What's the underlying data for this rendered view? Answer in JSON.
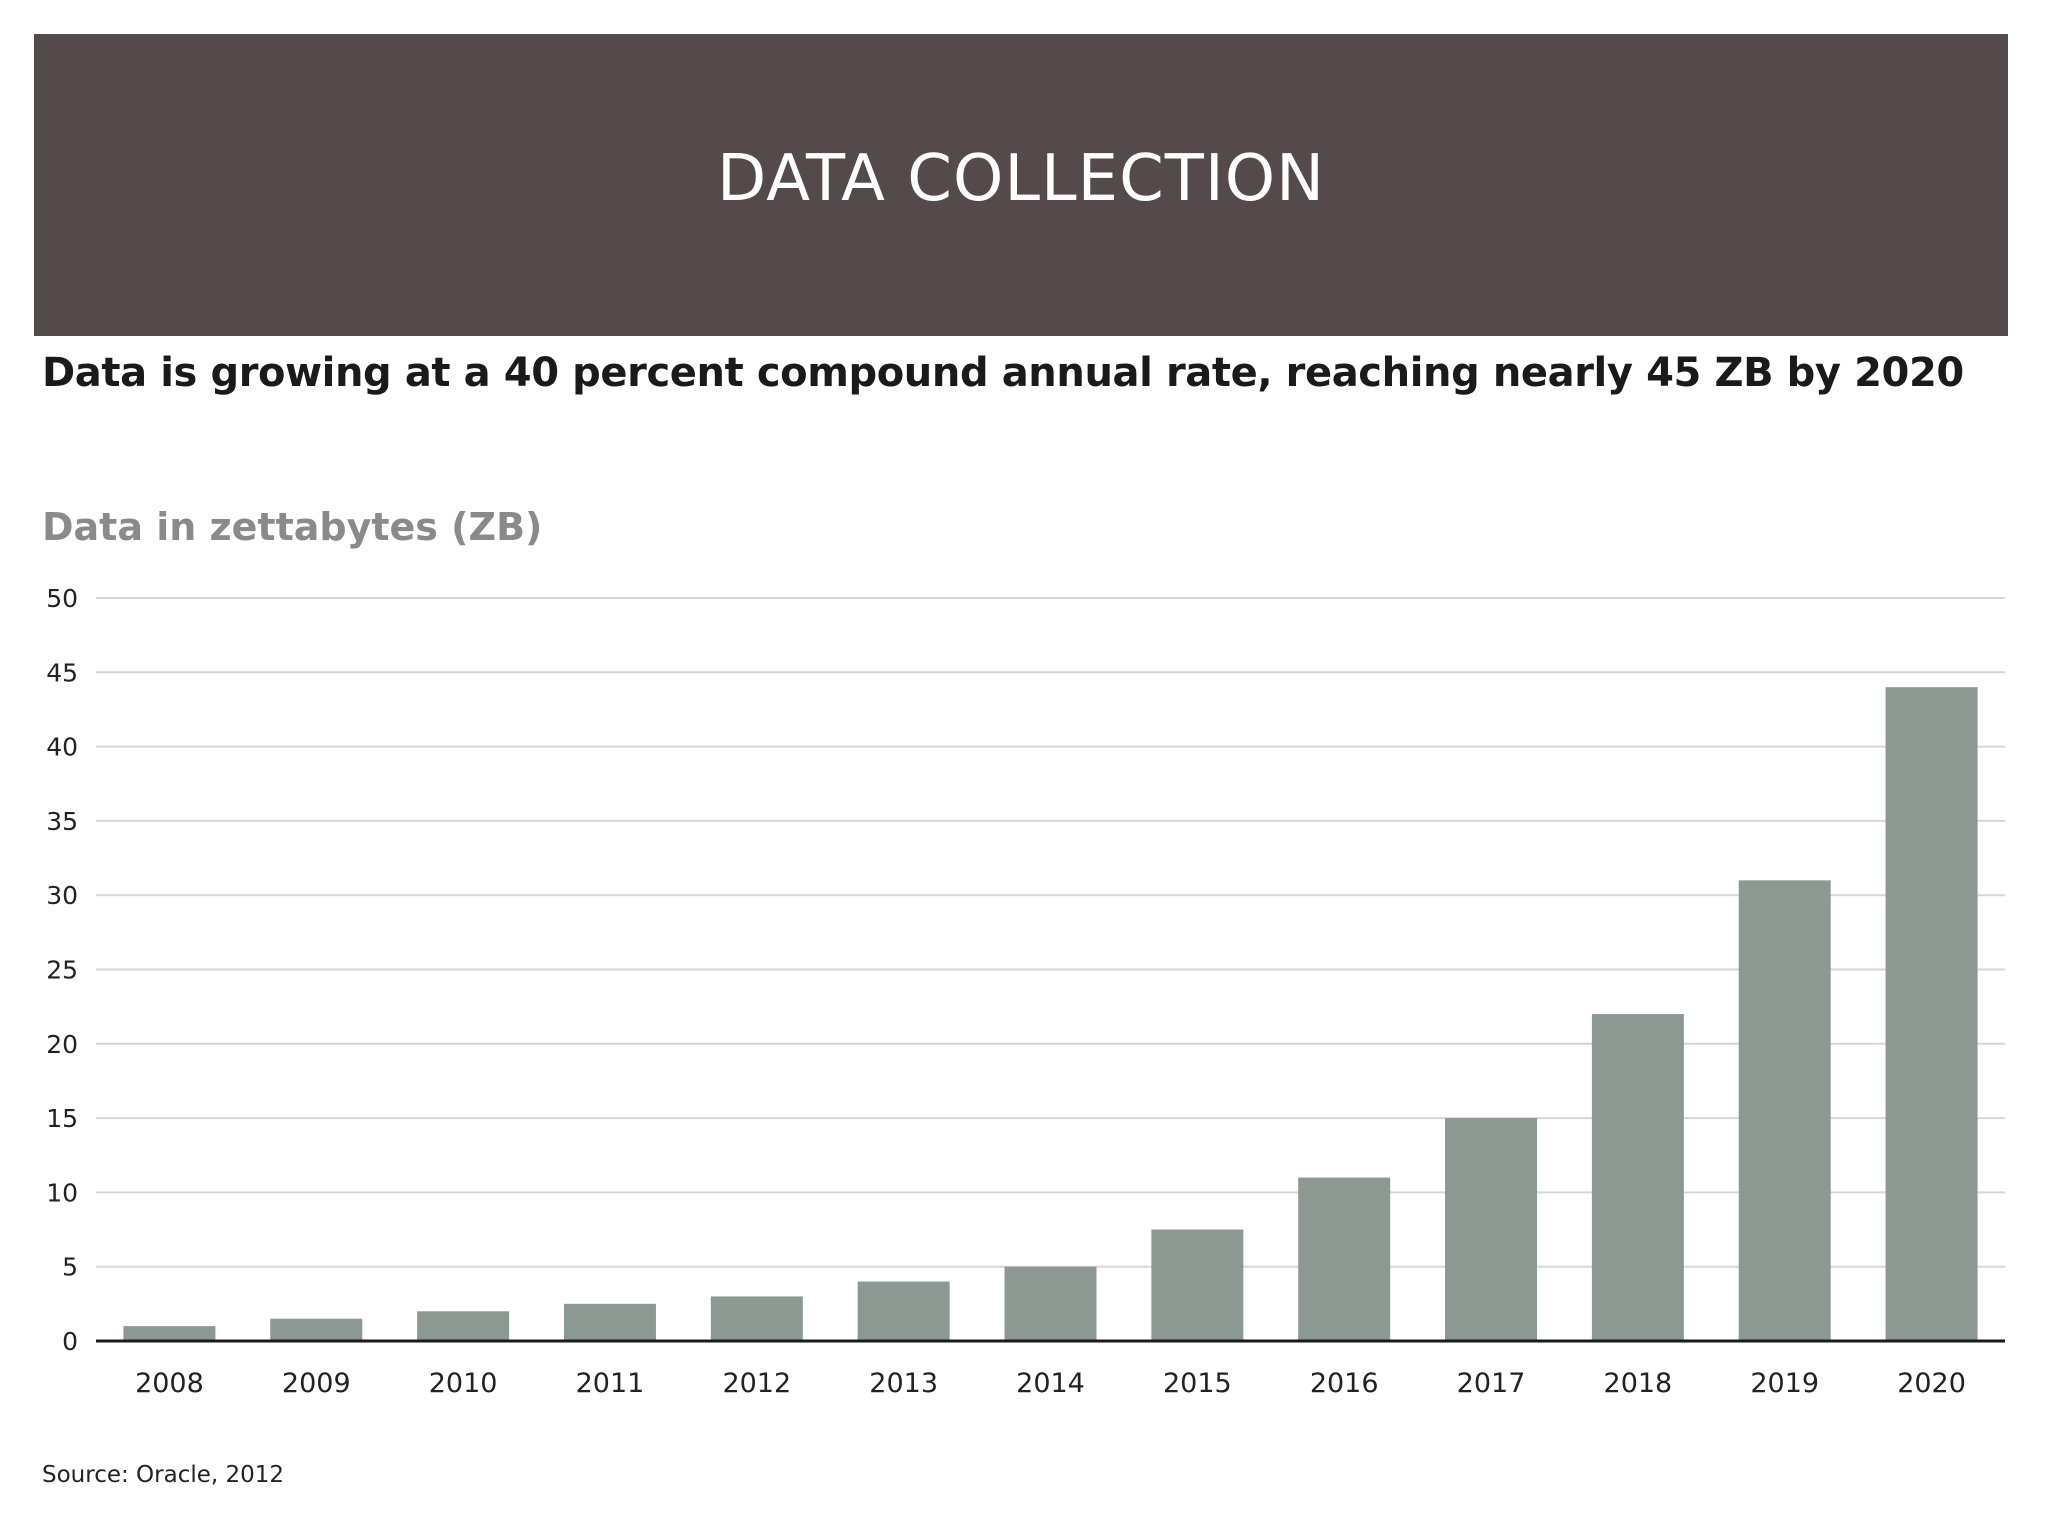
{
  "banner": {
    "title": "DATA COLLECTION"
  },
  "colors": {
    "banner_bg": "#554a4b",
    "bar": "#8c9993",
    "gridline": "#d6d6d6",
    "baseline": "#1a1a1a"
  },
  "source": "Source: Oracle, 2012",
  "chart_data": {
    "type": "bar",
    "title": "Data is growing at a 40 percent compound annual rate, reaching nearly 45 ZB by 2020",
    "ylabel": "Data in zettabytes (ZB)",
    "xlabel": "",
    "categories": [
      "2008",
      "2009",
      "2010",
      "2011",
      "2012",
      "2013",
      "2014",
      "2015",
      "2016",
      "2017",
      "2018",
      "2019",
      "2020"
    ],
    "values": [
      1,
      1.5,
      2,
      2.5,
      3,
      4,
      5,
      7.5,
      11,
      15,
      22,
      31,
      44
    ],
    "ylim": [
      0,
      50
    ],
    "yticks": [
      0,
      5,
      10,
      15,
      20,
      25,
      30,
      35,
      40,
      45,
      50
    ],
    "grid": true,
    "legend": "none"
  }
}
